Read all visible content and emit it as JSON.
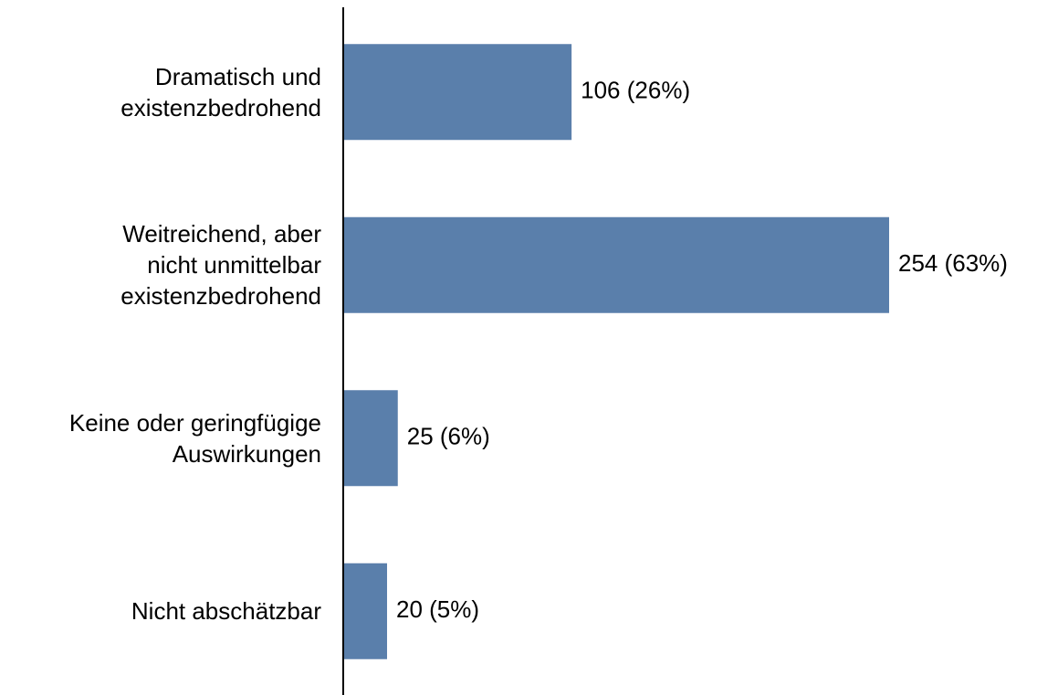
{
  "chart_data": {
    "type": "hbar",
    "categories": [
      "Dramatisch und\nexistenzbedrohend",
      "Weitreichend, aber\nnicht unmittelbar\nexistenzbedrohend",
      "Keine oder geringfügige\nAuswirkungen",
      "Nicht abschätzbar"
    ],
    "values": [
      106,
      254,
      25,
      20
    ],
    "value_labels": [
      "106 (26%)",
      "254 (63%)",
      "25 (6%)",
      "20 (5%)"
    ],
    "color": "#5a7fab"
  }
}
